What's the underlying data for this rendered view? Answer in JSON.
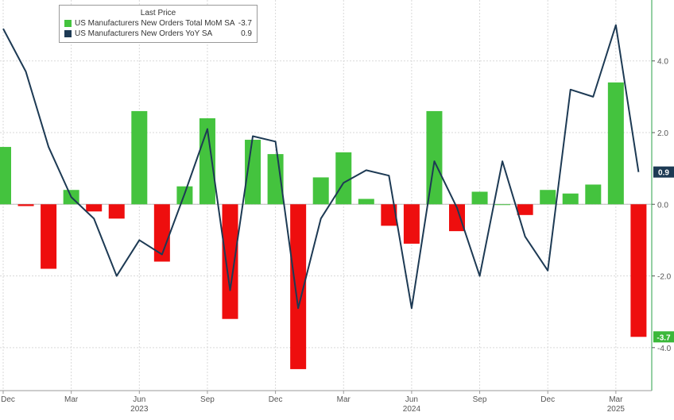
{
  "legend": {
    "header": "Last Price",
    "items": [
      {
        "name": "US Manufacturers New Orders Total MoM SA",
        "value": "-3.7",
        "color": "#44c33e"
      },
      {
        "name": "US Manufacturers New Orders YoY SA",
        "value": "0.9",
        "color": "#1d3a54"
      }
    ]
  },
  "colors": {
    "bar_positive": "#44c33e",
    "bar_negative": "#ee0e0e",
    "line": "#1d3a54",
    "gridline": "#d9d9d9",
    "axis_text": "#555555",
    "right_axis_line": "#2aa14a",
    "badge_line": "#1d3a54",
    "badge_bar": "#3bb83a"
  },
  "chart_data": {
    "type": "bar",
    "x": [
      "2022-12",
      "2023-01",
      "2023-02",
      "2023-03",
      "2023-04",
      "2023-05",
      "2023-06",
      "2023-07",
      "2023-08",
      "2023-09",
      "2023-10",
      "2023-11",
      "2023-12",
      "2024-01",
      "2024-02",
      "2024-03",
      "2024-04",
      "2024-05",
      "2024-06",
      "2024-07",
      "2024-08",
      "2024-09",
      "2024-10",
      "2024-11",
      "2024-12",
      "2025-01",
      "2025-02",
      "2025-03",
      "2025-04"
    ],
    "series": [
      {
        "name": "US Manufacturers New Orders Total MoM SA",
        "kind": "bar",
        "values": [
          1.6,
          -0.05,
          -1.8,
          0.4,
          -0.2,
          -0.4,
          2.6,
          -1.6,
          0.5,
          2.4,
          -3.2,
          1.8,
          1.4,
          -4.6,
          0.75,
          1.45,
          0.15,
          -0.6,
          -1.1,
          2.6,
          -0.75,
          0.35,
          0.0,
          -0.3,
          0.4,
          0.3,
          0.55,
          3.4,
          -3.7
        ]
      },
      {
        "name": "US Manufacturers New Orders YoY SA",
        "kind": "line",
        "values": [
          4.9,
          3.7,
          1.6,
          0.2,
          -0.4,
          -2.0,
          -1.0,
          -1.4,
          0.3,
          2.1,
          -2.4,
          1.9,
          1.75,
          -2.9,
          -0.4,
          0.6,
          0.95,
          0.8,
          -2.9,
          1.2,
          -0.1,
          -2.0,
          1.2,
          -0.9,
          -1.85,
          3.2,
          3.0,
          5.0,
          0.9
        ]
      }
    ],
    "ylim": [
      -5.2,
      5.7
    ],
    "y_ticks": [
      -4.0,
      -2.0,
      0.0,
      2.0,
      4.0
    ],
    "y_tick_labels": [
      "-4.0",
      "-2.0",
      "0.0",
      "2.0",
      "4.0"
    ],
    "y_axis_side": "right",
    "grid": true,
    "legend_position": "top-left",
    "x_tick_labels": [
      "Dec",
      "Mar",
      "Jun",
      "Sep",
      "Dec",
      "Mar",
      "Jun",
      "Sep",
      "Dec",
      "Mar"
    ],
    "x_tick_positions": [
      "2022-12",
      "2023-03",
      "2023-06",
      "2023-09",
      "2023-12",
      "2024-03",
      "2024-06",
      "2024-09",
      "2024-12",
      "2025-03"
    ],
    "year_labels": [
      "2023",
      "2024",
      "2025"
    ],
    "year_positions": [
      "2023-06",
      "2024-06",
      "2025-03"
    ],
    "last_value_badges": [
      {
        "series": "US Manufacturers New Orders YoY SA",
        "value": 0.9,
        "label": "0.9"
      },
      {
        "series": "US Manufacturers New Orders Total MoM SA",
        "value": -3.7,
        "label": "-3.7"
      }
    ]
  }
}
